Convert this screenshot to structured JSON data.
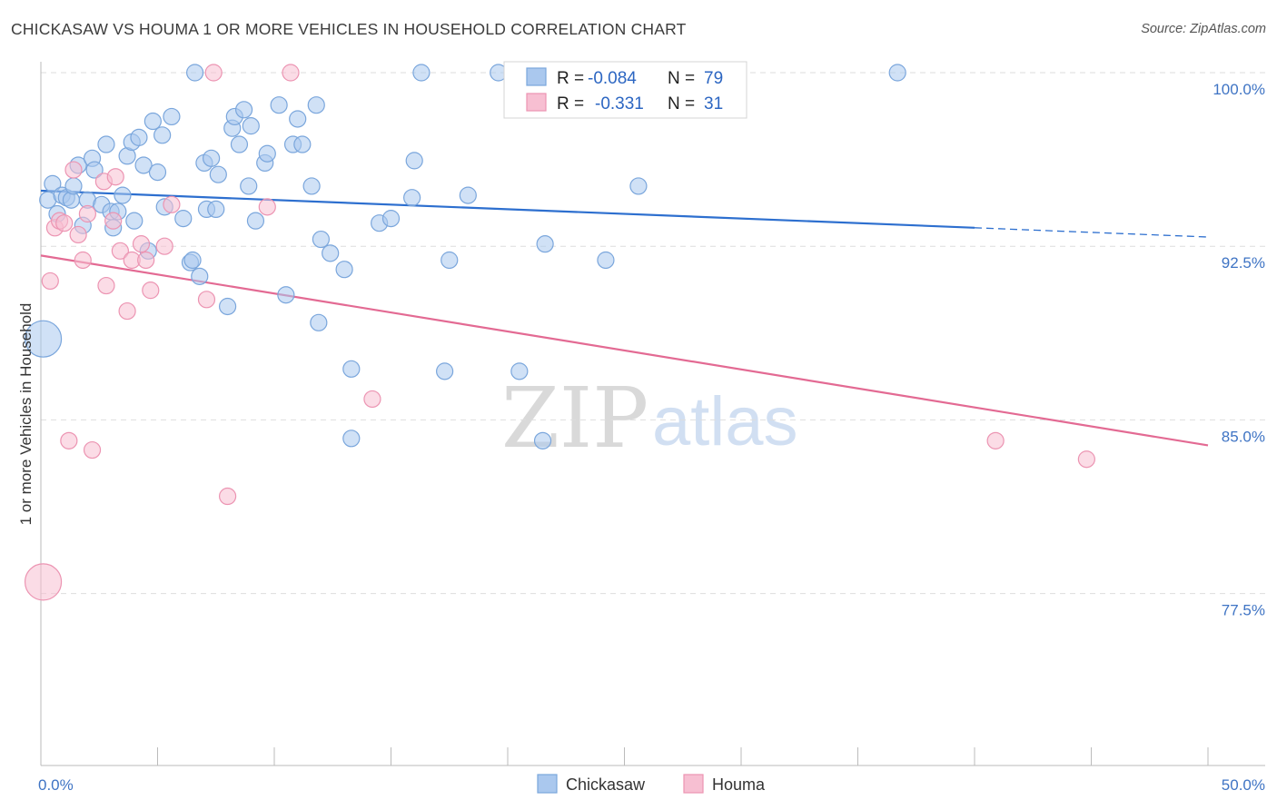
{
  "title": "CHICKASAW VS HOUMA 1 OR MORE VEHICLES IN HOUSEHOLD CORRELATION CHART",
  "source": "Source: ZipAtlas.com",
  "watermark": {
    "zip": "ZIP",
    "atlas": "atlas"
  },
  "legend": {
    "r_label": "R =",
    "n_label": "N =",
    "items": [
      {
        "name": "Chickasaw",
        "r": "-0.084",
        "n": "79"
      },
      {
        "name": "Houma",
        "r": "-0.331",
        "n": "31"
      }
    ]
  },
  "colors": {
    "chickasaw_fill": "#aac8ee",
    "chickasaw_stroke": "#7aa6dc",
    "chickasaw_line": "#2d6fcf",
    "houma_fill": "#f7bfd2",
    "houma_stroke": "#ec94b2",
    "houma_line": "#e36a93",
    "tick_text": "#3f74c4",
    "grid": "#dddddd"
  },
  "chart_data": {
    "type": "scatter",
    "title": "CHICKASAW VS HOUMA 1 OR MORE VEHICLES IN HOUSEHOLD CORRELATION CHART",
    "xlabel": "",
    "ylabel": "1 or more Vehicles in Household",
    "xlim": [
      0,
      50
    ],
    "ylim": [
      70.5,
      101.0
    ],
    "x_tick_labels": [
      "0.0%",
      "50.0%"
    ],
    "y_ticks": [
      100.0,
      92.5,
      85.0,
      77.5
    ],
    "y_tick_labels": [
      "100.0%",
      "92.5%",
      "85.0%",
      "77.5%"
    ],
    "grid": "horizontal dashed",
    "series": [
      {
        "name": "Chickasaw",
        "trend": {
          "x0": 0,
          "y0": 94.9,
          "x1": 40,
          "y1": 93.3,
          "dash_to_x": 50,
          "dash_to_y": 92.9
        },
        "points": [
          {
            "x": 0.1,
            "y": 88.5,
            "big": true
          },
          {
            "x": 0.3,
            "y": 94.5
          },
          {
            "x": 0.5,
            "y": 95.2
          },
          {
            "x": 0.7,
            "y": 93.9
          },
          {
            "x": 0.9,
            "y": 94.7
          },
          {
            "x": 1.1,
            "y": 94.6
          },
          {
            "x": 1.3,
            "y": 94.5
          },
          {
            "x": 1.4,
            "y": 95.1
          },
          {
            "x": 1.6,
            "y": 96.0
          },
          {
            "x": 1.8,
            "y": 93.4
          },
          {
            "x": 2.0,
            "y": 94.5
          },
          {
            "x": 2.2,
            "y": 96.3
          },
          {
            "x": 2.3,
            "y": 95.8
          },
          {
            "x": 2.6,
            "y": 94.3
          },
          {
            "x": 2.8,
            "y": 96.9
          },
          {
            "x": 3.0,
            "y": 94.0
          },
          {
            "x": 3.1,
            "y": 93.3
          },
          {
            "x": 3.3,
            "y": 94.0
          },
          {
            "x": 3.5,
            "y": 94.7
          },
          {
            "x": 3.7,
            "y": 96.4
          },
          {
            "x": 3.9,
            "y": 97.0
          },
          {
            "x": 4.0,
            "y": 93.6
          },
          {
            "x": 4.2,
            "y": 97.2
          },
          {
            "x": 4.4,
            "y": 96.0
          },
          {
            "x": 4.6,
            "y": 92.3
          },
          {
            "x": 4.8,
            "y": 97.9
          },
          {
            "x": 5.0,
            "y": 95.7
          },
          {
            "x": 5.2,
            "y": 97.3
          },
          {
            "x": 5.3,
            "y": 94.2
          },
          {
            "x": 5.6,
            "y": 98.1
          },
          {
            "x": 6.1,
            "y": 93.7
          },
          {
            "x": 6.4,
            "y": 91.8
          },
          {
            "x": 6.5,
            "y": 91.9
          },
          {
            "x": 6.6,
            "y": 100.0
          },
          {
            "x": 6.8,
            "y": 91.2
          },
          {
            "x": 7.0,
            "y": 96.1
          },
          {
            "x": 7.1,
            "y": 94.1
          },
          {
            "x": 7.3,
            "y": 96.3
          },
          {
            "x": 7.5,
            "y": 94.1
          },
          {
            "x": 7.6,
            "y": 95.6
          },
          {
            "x": 8.0,
            "y": 89.9
          },
          {
            "x": 8.2,
            "y": 97.6
          },
          {
            "x": 8.3,
            "y": 98.1
          },
          {
            "x": 8.5,
            "y": 96.9
          },
          {
            "x": 8.7,
            "y": 98.4
          },
          {
            "x": 8.9,
            "y": 95.1
          },
          {
            "x": 9.0,
            "y": 97.7
          },
          {
            "x": 9.2,
            "y": 93.6
          },
          {
            "x": 9.6,
            "y": 96.1
          },
          {
            "x": 9.7,
            "y": 96.5
          },
          {
            "x": 10.2,
            "y": 98.6
          },
          {
            "x": 10.5,
            "y": 90.4
          },
          {
            "x": 10.8,
            "y": 96.9
          },
          {
            "x": 11.0,
            "y": 98.0
          },
          {
            "x": 11.2,
            "y": 96.9
          },
          {
            "x": 11.6,
            "y": 95.1
          },
          {
            "x": 11.8,
            "y": 98.6
          },
          {
            "x": 11.9,
            "y": 89.2
          },
          {
            "x": 12.0,
            "y": 92.8
          },
          {
            "x": 12.4,
            "y": 92.2
          },
          {
            "x": 13.0,
            "y": 91.5
          },
          {
            "x": 13.3,
            "y": 87.2
          },
          {
            "x": 13.3,
            "y": 84.2
          },
          {
            "x": 14.5,
            "y": 93.5
          },
          {
            "x": 15.0,
            "y": 93.7
          },
          {
            "x": 15.9,
            "y": 94.6
          },
          {
            "x": 16.0,
            "y": 96.2
          },
          {
            "x": 16.3,
            "y": 100.0
          },
          {
            "x": 17.3,
            "y": 87.1
          },
          {
            "x": 17.5,
            "y": 91.9
          },
          {
            "x": 18.3,
            "y": 94.7
          },
          {
            "x": 19.6,
            "y": 100.0
          },
          {
            "x": 20.5,
            "y": 87.1
          },
          {
            "x": 21.5,
            "y": 84.1
          },
          {
            "x": 21.6,
            "y": 92.6
          },
          {
            "x": 22.4,
            "y": 100.0
          },
          {
            "x": 24.2,
            "y": 91.9
          },
          {
            "x": 25.6,
            "y": 95.1
          },
          {
            "x": 36.7,
            "y": 100.0
          }
        ]
      },
      {
        "name": "Houma",
        "trend": {
          "x0": 0,
          "y0": 92.1,
          "x1": 50,
          "y1": 83.9
        },
        "points": [
          {
            "x": 0.1,
            "y": 78.0,
            "big": true
          },
          {
            "x": 0.4,
            "y": 91.0
          },
          {
            "x": 0.6,
            "y": 93.3
          },
          {
            "x": 0.8,
            "y": 93.6
          },
          {
            "x": 1.0,
            "y": 93.5
          },
          {
            "x": 1.2,
            "y": 84.1
          },
          {
            "x": 1.4,
            "y": 95.8
          },
          {
            "x": 1.6,
            "y": 93.0
          },
          {
            "x": 1.8,
            "y": 91.9
          },
          {
            "x": 2.0,
            "y": 93.9
          },
          {
            "x": 2.2,
            "y": 83.7
          },
          {
            "x": 2.7,
            "y": 95.3
          },
          {
            "x": 2.8,
            "y": 90.8
          },
          {
            "x": 3.1,
            "y": 93.6
          },
          {
            "x": 3.2,
            "y": 95.5
          },
          {
            "x": 3.4,
            "y": 92.3
          },
          {
            "x": 3.7,
            "y": 89.7
          },
          {
            "x": 3.9,
            "y": 91.9
          },
          {
            "x": 4.3,
            "y": 92.6
          },
          {
            "x": 4.5,
            "y": 91.9
          },
          {
            "x": 4.7,
            "y": 90.6
          },
          {
            "x": 5.3,
            "y": 92.5
          },
          {
            "x": 5.6,
            "y": 94.3
          },
          {
            "x": 7.1,
            "y": 90.2
          },
          {
            "x": 7.4,
            "y": 100.0
          },
          {
            "x": 8.0,
            "y": 81.7
          },
          {
            "x": 9.7,
            "y": 94.2
          },
          {
            "x": 10.7,
            "y": 100.0
          },
          {
            "x": 14.2,
            "y": 85.9
          },
          {
            "x": 40.9,
            "y": 84.1
          },
          {
            "x": 44.8,
            "y": 83.3
          }
        ]
      }
    ]
  }
}
